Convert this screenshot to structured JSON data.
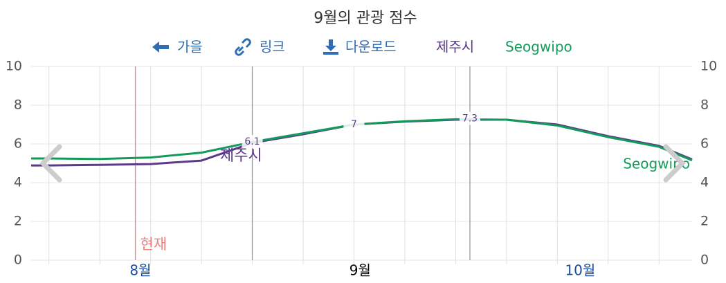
{
  "toolbar": {
    "back": "가을",
    "link": "링크",
    "download": "다운로드"
  },
  "chart_data": {
    "type": "line",
    "title": "9월의 관광 점수",
    "x": [
      -0.35,
      0,
      1,
      2,
      3,
      4,
      5,
      6,
      7,
      8,
      9,
      10,
      11,
      12,
      12.65
    ],
    "series": [
      {
        "name": "제주시",
        "color": "#5b3a8c",
        "values": [
          4.89,
          4.89,
          4.92,
          4.96,
          5.14,
          6.05,
          6.5,
          7.0,
          7.15,
          7.25,
          7.25,
          7.0,
          6.4,
          5.9,
          5.2
        ]
      },
      {
        "name": "Seogwipo",
        "color": "#139a5a",
        "values": [
          5.25,
          5.25,
          5.22,
          5.3,
          5.55,
          6.1,
          6.55,
          7.0,
          7.17,
          7.27,
          7.25,
          6.95,
          6.35,
          5.85,
          5.15
        ]
      }
    ],
    "xlim": [
      -0.35,
      12.65
    ],
    "xticks": [
      {
        "value": 1.8,
        "label": "8월"
      },
      {
        "value": 6.12,
        "label": "9월"
      },
      {
        "value": 10.45,
        "label": "10월"
      }
    ],
    "current_tick": 1,
    "xgrid": [
      0,
      1,
      2,
      3,
      4,
      5,
      6,
      7,
      8,
      9,
      10,
      11,
      12
    ],
    "ylim": [
      0,
      10
    ],
    "yticks": [
      0,
      2,
      4,
      6,
      8,
      10
    ],
    "y2lim": [
      0,
      10
    ],
    "y2ticks": [
      0,
      2,
      4,
      6,
      8,
      10
    ],
    "grid": true,
    "reference_lines": [
      {
        "x": 1.7,
        "label": "현재",
        "color": "#f08080"
      },
      {
        "x": 4
      },
      {
        "x": 8.28
      }
    ],
    "point_labels": [
      {
        "x": 4,
        "y": 6.1
      },
      {
        "x": 6,
        "y": 7.0
      },
      {
        "x": 8.28,
        "y": 7.3
      }
    ]
  }
}
